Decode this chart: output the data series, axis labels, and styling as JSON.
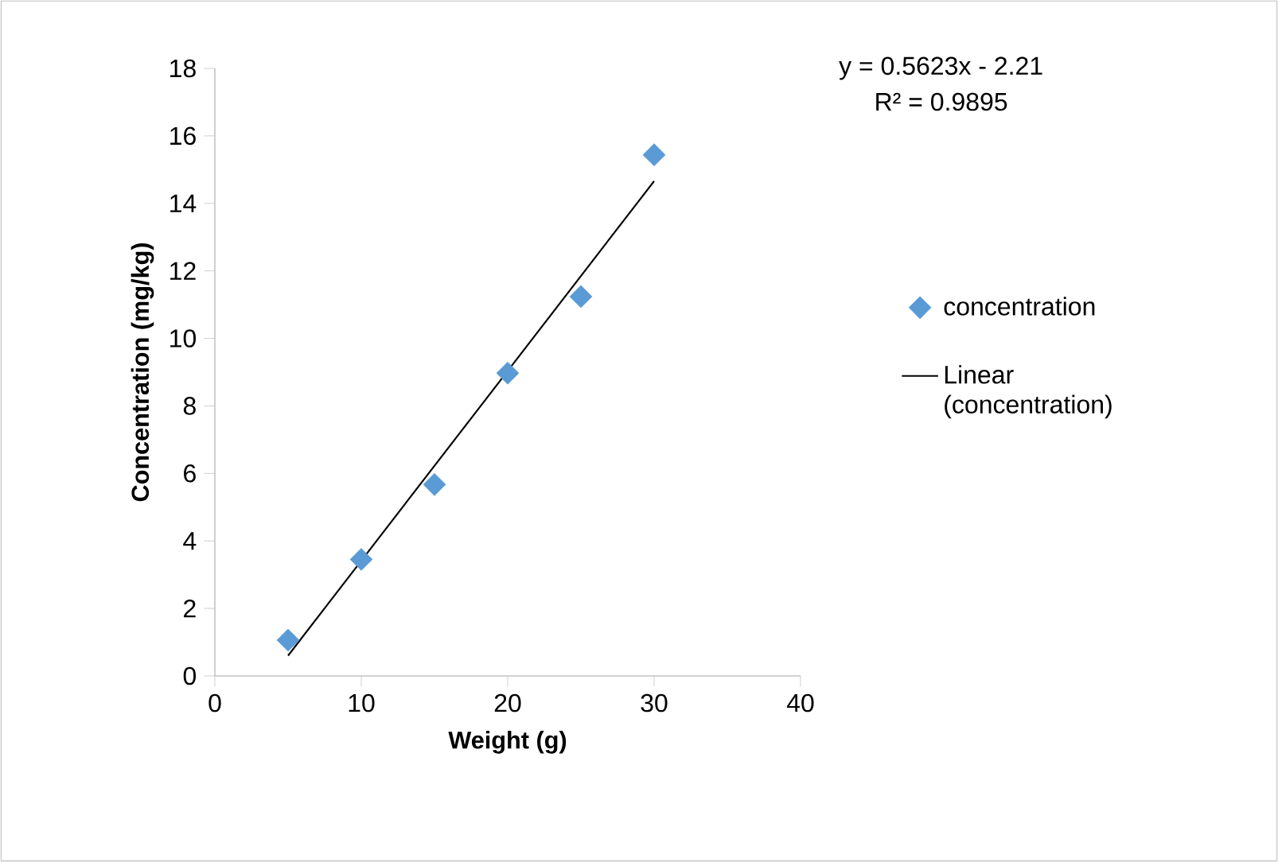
{
  "chart_data": {
    "type": "scatter",
    "xlabel": "Weight (g)",
    "ylabel": "Concentration (mg/kg)",
    "xlim": [
      0,
      40
    ],
    "xticks": [
      0,
      10,
      20,
      30,
      40
    ],
    "ylim": [
      0,
      18
    ],
    "yticks": [
      0,
      2,
      4,
      6,
      8,
      10,
      12,
      14,
      16,
      18
    ],
    "grid": false,
    "legend": "right",
    "annotations": [
      "y = 0.5623x - 2.21",
      "R² = 0.9895"
    ],
    "series": [
      {
        "name": "concentration",
        "marker": "diamond",
        "color": "#5b9bd5",
        "x": [
          5,
          10,
          15,
          20,
          25,
          30
        ],
        "values": [
          1.06,
          3.45,
          5.67,
          8.97,
          11.24,
          15.44
        ]
      },
      {
        "name": "Linear (concentration)",
        "type": "line",
        "marker": "none",
        "color": "#000000",
        "x": [
          5,
          30
        ],
        "values": [
          0.6,
          14.66
        ]
      }
    ]
  }
}
